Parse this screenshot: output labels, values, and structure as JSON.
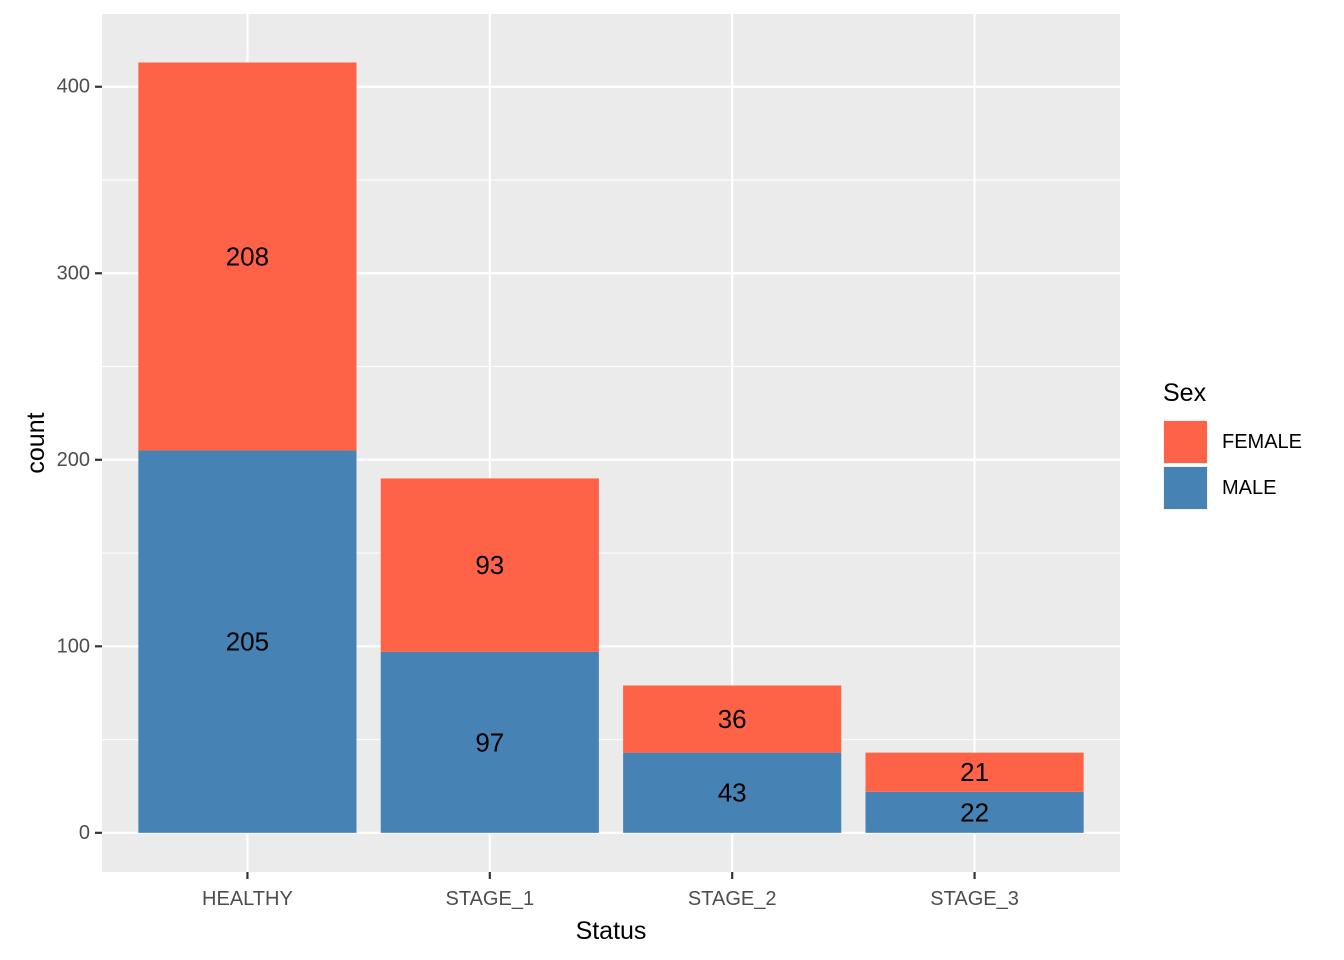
{
  "chart_data": {
    "type": "bar",
    "stacked": true,
    "categories": [
      "HEALTHY",
      "STAGE_1",
      "STAGE_2",
      "STAGE_3"
    ],
    "series": [
      {
        "name": "FEMALE",
        "values": [
          208,
          93,
          36,
          21
        ],
        "color": "#FF6347"
      },
      {
        "name": "MALE",
        "values": [
          205,
          97,
          43,
          22
        ],
        "color": "#4682B4"
      }
    ],
    "xlabel": "Status",
    "ylabel": "count",
    "ylim": [
      -21,
      439
    ],
    "yticks": [
      0,
      100,
      200,
      300,
      400
    ],
    "grid": true,
    "panel_background": "#EBEBEB",
    "legend": {
      "title": "Sex",
      "position": "right"
    }
  }
}
